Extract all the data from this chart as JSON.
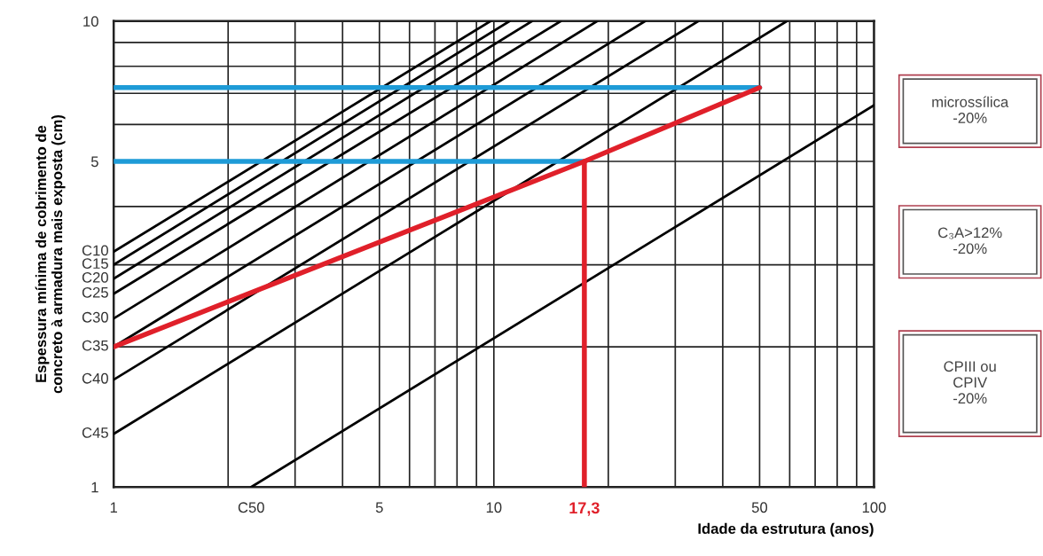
{
  "chart_data": {
    "type": "line",
    "xlabel": "Idade da estrutura (anos)",
    "ylabel": "Espessura mínima de cobrimento de\nconcreto à armadura mais exposta (cm)",
    "log": "xy",
    "xlim": [
      1,
      100
    ],
    "ylim": [
      1,
      10
    ],
    "xticks": [
      1,
      {
        "value": 2,
        "label": null
      },
      {
        "value": 3,
        "label": null
      },
      {
        "value": 4,
        "label": null
      },
      5,
      {
        "value": 6,
        "label": null
      },
      {
        "value": 7,
        "label": null
      },
      {
        "value": 8,
        "label": null
      },
      {
        "value": 9,
        "label": null
      },
      10,
      {
        "value": 20,
        "label": null
      },
      {
        "value": 30,
        "label": null
      },
      {
        "value": 40,
        "label": null
      },
      50,
      {
        "value": 60,
        "label": null
      },
      {
        "value": 70,
        "label": null
      },
      {
        "value": 80,
        "label": null
      },
      {
        "value": 90,
        "label": null
      },
      100
    ],
    "yticks": [
      1,
      {
        "value": 2,
        "label": null
      },
      {
        "value": 3,
        "label": null
      },
      {
        "value": 4,
        "label": null
      },
      5,
      {
        "value": 6,
        "label": null
      },
      {
        "value": 7,
        "label": null
      },
      {
        "value": 8,
        "label": null
      },
      {
        "value": 9,
        "label": null
      },
      10
    ],
    "grid": true,
    "marker": "none",
    "line_style": "solid",
    "series": [
      {
        "name": "C10",
        "color": "#000000",
        "x": [
          1,
          9.8
        ],
        "values": [
          3.2,
          10
        ]
      },
      {
        "name": "C15",
        "color": "#000000",
        "x": [
          1,
          11
        ],
        "values": [
          3.0,
          10
        ]
      },
      {
        "name": "C20",
        "color": "#000000",
        "x": [
          1,
          12.6
        ],
        "values": [
          2.8,
          10
        ]
      },
      {
        "name": "C25",
        "color": "#000000",
        "x": [
          1,
          15
        ],
        "values": [
          2.6,
          10
        ]
      },
      {
        "name": "C30",
        "color": "#000000",
        "x": [
          1,
          18.7
        ],
        "values": [
          2.3,
          10
        ]
      },
      {
        "name": "C35",
        "color": "#000000",
        "x": [
          1,
          25
        ],
        "values": [
          2.0,
          10
        ]
      },
      {
        "name": "C40",
        "color": "#000000",
        "x": [
          1,
          34.5
        ],
        "values": [
          1.7,
          10
        ]
      },
      {
        "name": "C45",
        "color": "#000000",
        "x": [
          1,
          59
        ],
        "values": [
          1.3,
          10
        ]
      },
      {
        "name": "C50",
        "color": "#000000",
        "x": [
          2.3,
          100
        ],
        "values": [
          1,
          6.6
        ]
      },
      {
        "color": "#1e9bd7",
        "x": [
          1,
          17.3
        ],
        "values": [
          5,
          5
        ]
      },
      {
        "color": "#1e9bd7",
        "x": [
          1,
          50
        ],
        "values": [
          7.2,
          7.2
        ]
      },
      {
        "color": "#e0202a",
        "x": [
          1,
          17.3,
          50
        ],
        "values": [
          2.0,
          5,
          7.2
        ]
      },
      {
        "color": "#e0202a",
        "x": [
          17.3,
          17.3
        ],
        "values": [
          1,
          5
        ]
      }
    ],
    "annotations": [
      {
        "text": "17,3",
        "x": 17.3,
        "y": 1
      },
      "microssílica\n-20%",
      "C₃A>12%\n-20%",
      "CPIII ou\nCPIV\n-20%"
    ]
  }
}
